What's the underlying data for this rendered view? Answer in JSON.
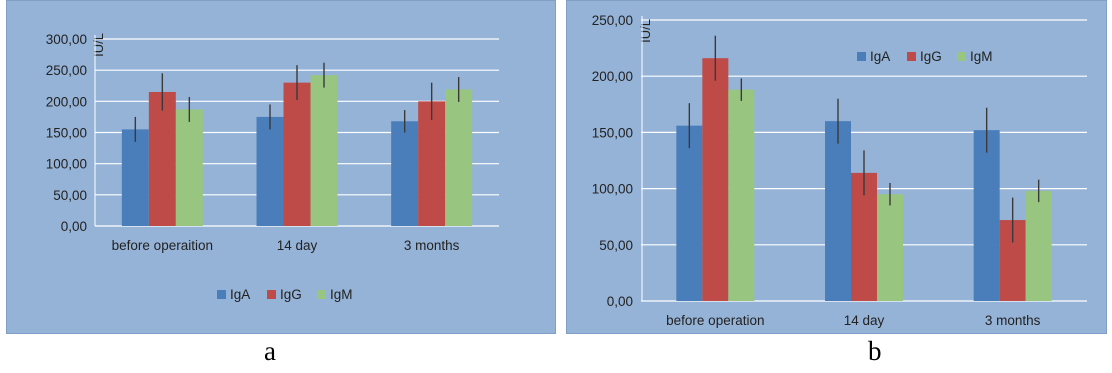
{
  "chart_data": [
    {
      "type": "bar",
      "panel_label": "a",
      "ylabel": "IU/L",
      "ylim": [
        0,
        300
      ],
      "yticks": [
        "0,00",
        "50,00",
        "100,00",
        "150,00",
        "200,00",
        "250,00",
        "300,00"
      ],
      "ytick_values": [
        0,
        50,
        100,
        150,
        200,
        250,
        300
      ],
      "categories": [
        "before operaition",
        "14 day",
        "3 months"
      ],
      "series": [
        {
          "name": "IgA",
          "color": "#4a7ebb",
          "values": [
            155,
            175,
            168
          ],
          "errors": [
            20,
            20,
            18
          ]
        },
        {
          "name": "IgG",
          "color": "#be4b48",
          "values": [
            215,
            230,
            200
          ],
          "errors": [
            30,
            28,
            30
          ]
        },
        {
          "name": "IgM",
          "color": "#98c680",
          "values": [
            187,
            242,
            219
          ],
          "errors": [
            20,
            20,
            20
          ]
        }
      ],
      "legend_position": "bottom",
      "grid": true
    },
    {
      "type": "bar",
      "panel_label": "b",
      "ylabel": "IU/L",
      "ylim": [
        0,
        250
      ],
      "yticks": [
        "0,00",
        "50,00",
        "100,00",
        "150,00",
        "200,00",
        "250,00"
      ],
      "ytick_values": [
        0,
        50,
        100,
        150,
        200,
        250
      ],
      "categories": [
        "before operation",
        "14 day",
        "3 months"
      ],
      "series": [
        {
          "name": "IgA",
          "color": "#4a7ebb",
          "values": [
            156,
            160,
            152
          ],
          "errors": [
            20,
            20,
            20
          ]
        },
        {
          "name": "IgG",
          "color": "#be4b48",
          "values": [
            216,
            114,
            72
          ],
          "errors": [
            20,
            20,
            20
          ]
        },
        {
          "name": "IgM",
          "color": "#98c680",
          "values": [
            188,
            95,
            98
          ],
          "errors": [
            10,
            10,
            10
          ]
        }
      ],
      "legend_position": "top-right",
      "grid": true
    }
  ]
}
